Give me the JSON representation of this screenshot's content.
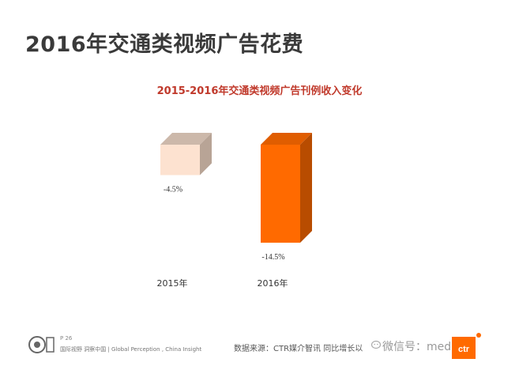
{
  "page": {
    "title": "2016年交通类视频广告花费"
  },
  "chart_data": {
    "type": "bar",
    "title": "2015-2016年交通类视频广告刊例收入变化",
    "categories": [
      "2015年",
      "2016年"
    ],
    "values": [
      -4.5,
      -14.5
    ],
    "value_labels": [
      "-4.5%",
      "-14.5%"
    ],
    "ylim": [
      -16,
      0
    ],
    "colors": [
      "#fde2d0",
      "#ff6a00"
    ],
    "grid": false,
    "legend": "none"
  },
  "footer": {
    "page_number": "P 26",
    "tagline": "国际视野 洞察中国 | Global Perception , China Insight",
    "source": "数据来源：CTR媒介智讯   同比增长以",
    "wechat": "微信号：medium"
  }
}
